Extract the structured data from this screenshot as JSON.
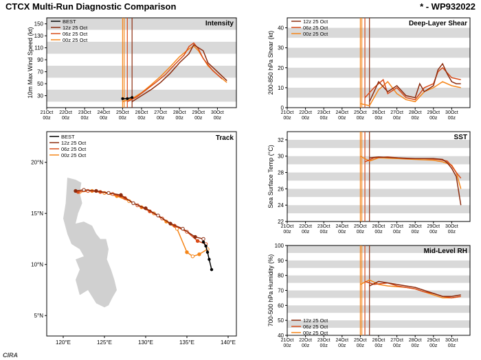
{
  "header": {
    "title": "CTCX Multi-Run Diagnostic Comparison",
    "storm_id": "* - WP932022",
    "logo": "CIRA"
  },
  "runs": [
    {
      "label": "12z 25 Oct",
      "color": "#8b2a0c"
    },
    {
      "label": "06z 25 Oct",
      "color": "#d94a17"
    },
    {
      "label": "00z 25 Oct",
      "color": "#f58518"
    }
  ],
  "best_label": "BEST",
  "best_color": "#000000",
  "grid_band_color": "#d9d9d9",
  "grid_bg_color": "#ffffff",
  "axis_color": "#000000",
  "fontsize_axis": 9,
  "fontsize_panel_title": 10,
  "time_axis": {
    "start": "21Oct 00z",
    "end": "31Oct 00z",
    "ticks": [
      "21Oct\n00z",
      "22Oct\n00z",
      "23Oct\n00z",
      "24Oct\n00z",
      "25Oct\n00z",
      "26Oct\n00z",
      "27Oct\n00z",
      "28Oct\n00z",
      "29Oct\n00z",
      "30Oct\n00z"
    ],
    "tick_positions": [
      21,
      22,
      23,
      24,
      25,
      26,
      27,
      28,
      29,
      30
    ],
    "xlim": [
      21,
      31
    ]
  },
  "intensity": {
    "title": "Intensity",
    "ylabel": "10m Max Wind Speed (kt)",
    "ylim": [
      10,
      160
    ],
    "ytick_step": 20,
    "band_levels": [
      [
        20,
        40
      ],
      [
        60,
        80
      ],
      [
        100,
        120
      ],
      [
        140,
        160
      ]
    ],
    "best": [
      [
        25.0,
        25
      ],
      [
        25.25,
        25
      ],
      [
        25.5,
        27
      ]
    ],
    "series": {
      "12z": [
        [
          25.5,
          20
        ],
        [
          26.0,
          30
        ],
        [
          26.5,
          40
        ],
        [
          27.0,
          52
        ],
        [
          27.5,
          67
        ],
        [
          28.0,
          85
        ],
        [
          28.5,
          100
        ],
        [
          28.75,
          115
        ],
        [
          29.0,
          110
        ],
        [
          29.25,
          105
        ],
        [
          29.5,
          85
        ],
        [
          30.0,
          70
        ],
        [
          30.5,
          55
        ]
      ],
      "06z": [
        [
          25.25,
          20
        ],
        [
          25.75,
          28
        ],
        [
          26.25,
          40
        ],
        [
          26.75,
          52
        ],
        [
          27.25,
          65
        ],
        [
          27.75,
          82
        ],
        [
          28.25,
          98
        ],
        [
          28.5,
          112
        ],
        [
          28.75,
          118
        ],
        [
          29.0,
          108
        ],
        [
          29.25,
          92
        ],
        [
          29.75,
          72
        ],
        [
          30.25,
          58
        ]
      ],
      "00z": [
        [
          25.0,
          20
        ],
        [
          25.5,
          25
        ],
        [
          26.0,
          35
        ],
        [
          26.5,
          48
        ],
        [
          27.0,
          62
        ],
        [
          27.5,
          78
        ],
        [
          28.0,
          95
        ],
        [
          28.5,
          108
        ],
        [
          28.75,
          113
        ],
        [
          29.0,
          105
        ],
        [
          29.5,
          80
        ],
        [
          30.0,
          65
        ],
        [
          30.5,
          52
        ]
      ]
    },
    "vlines": [
      25.0,
      25.08,
      25.25,
      25.5
    ]
  },
  "shear": {
    "title": "Deep-Layer Shear",
    "ylabel": "200-850 hPa Shear (kt)",
    "ylim": [
      0,
      45
    ],
    "yticks": [
      0,
      10,
      20,
      30,
      40
    ],
    "band_levels": [
      [
        5,
        10
      ],
      [
        15,
        20
      ],
      [
        25,
        30
      ],
      [
        35,
        40
      ]
    ],
    "series": {
      "12z": [
        [
          25.5,
          3
        ],
        [
          26.0,
          13
        ],
        [
          26.5,
          8
        ],
        [
          27.0,
          11
        ],
        [
          27.5,
          6
        ],
        [
          28.0,
          5
        ],
        [
          28.25,
          12
        ],
        [
          28.5,
          8
        ],
        [
          29.0,
          11
        ],
        [
          29.25,
          19
        ],
        [
          29.5,
          22
        ],
        [
          29.75,
          17
        ],
        [
          30.0,
          13
        ],
        [
          30.25,
          12
        ],
        [
          30.5,
          12
        ]
      ],
      "06z": [
        [
          25.25,
          5
        ],
        [
          25.75,
          10
        ],
        [
          26.25,
          14
        ],
        [
          26.5,
          7
        ],
        [
          27.0,
          10
        ],
        [
          27.5,
          5
        ],
        [
          28.0,
          4
        ],
        [
          28.5,
          10
        ],
        [
          29.0,
          12
        ],
        [
          29.25,
          18
        ],
        [
          29.5,
          20
        ],
        [
          30.0,
          15
        ],
        [
          30.5,
          14
        ]
      ],
      "00z": [
        [
          25.0,
          2
        ],
        [
          25.5,
          1
        ],
        [
          26.0,
          9
        ],
        [
          26.5,
          13
        ],
        [
          27.0,
          7
        ],
        [
          27.5,
          4
        ],
        [
          28.0,
          3
        ],
        [
          28.5,
          8
        ],
        [
          29.0,
          10
        ],
        [
          29.5,
          13
        ],
        [
          30.0,
          11
        ],
        [
          30.5,
          10
        ]
      ]
    },
    "vlines": [
      25.0,
      25.08,
      25.25,
      25.5
    ]
  },
  "sst": {
    "title": "SST",
    "ylabel": "Sea Surface Temp (°C)",
    "ylim": [
      22,
      33
    ],
    "yticks": [
      22,
      24,
      26,
      28,
      30,
      32
    ],
    "band_levels": [
      [
        23,
        24
      ],
      [
        25,
        26
      ],
      [
        27,
        28
      ],
      [
        29,
        30
      ],
      [
        31,
        32
      ]
    ],
    "series": {
      "12z": [
        [
          25.5,
          29.8
        ],
        [
          26.0,
          29.9
        ],
        [
          27.0,
          29.8
        ],
        [
          28.0,
          29.7
        ],
        [
          29.0,
          29.7
        ],
        [
          29.5,
          29.6
        ],
        [
          29.75,
          29.2
        ],
        [
          30.0,
          28.5
        ],
        [
          30.25,
          27.5
        ],
        [
          30.5,
          24.0
        ]
      ],
      "06z": [
        [
          25.25,
          29.3
        ],
        [
          25.75,
          29.8
        ],
        [
          26.5,
          29.9
        ],
        [
          27.5,
          29.7
        ],
        [
          28.5,
          29.7
        ],
        [
          29.25,
          29.6
        ],
        [
          29.75,
          29.4
        ],
        [
          30.0,
          28.8
        ],
        [
          30.25,
          28.0
        ],
        [
          30.5,
          27.3
        ]
      ],
      "00z": [
        [
          25.0,
          30.0
        ],
        [
          25.5,
          29.4
        ],
        [
          26.0,
          29.8
        ],
        [
          27.0,
          29.7
        ],
        [
          28.0,
          29.6
        ],
        [
          29.0,
          29.5
        ],
        [
          29.5,
          29.3
        ],
        [
          30.0,
          28.9
        ],
        [
          30.25,
          28.0
        ],
        [
          30.5,
          26.0
        ]
      ]
    },
    "vlines": [
      25.0,
      25.08,
      25.25,
      25.5
    ]
  },
  "rh": {
    "title": "Mid-Level RH",
    "ylabel": "700-500 hPa Humidity (%)",
    "ylim": [
      40,
      100
    ],
    "yticks": [
      40,
      50,
      60,
      70,
      80,
      90,
      100
    ],
    "band_levels": [
      [
        45,
        50
      ],
      [
        55,
        60
      ],
      [
        65,
        70
      ],
      [
        75,
        80
      ],
      [
        85,
        90
      ],
      [
        95,
        100
      ]
    ],
    "series": {
      "12z": [
        [
          25.5,
          73
        ],
        [
          26.0,
          76
        ],
        [
          26.5,
          75
        ],
        [
          27.0,
          74
        ],
        [
          27.5,
          73
        ],
        [
          28.0,
          72
        ],
        [
          28.5,
          70
        ],
        [
          29.0,
          68
        ],
        [
          29.5,
          66
        ],
        [
          30.0,
          66
        ],
        [
          30.5,
          67
        ]
      ],
      "06z": [
        [
          25.25,
          76
        ],
        [
          25.75,
          74
        ],
        [
          26.5,
          75
        ],
        [
          27.0,
          73
        ],
        [
          27.5,
          72
        ],
        [
          28.0,
          71
        ],
        [
          28.5,
          69
        ],
        [
          29.0,
          68
        ],
        [
          29.5,
          66
        ],
        [
          30.0,
          65
        ],
        [
          30.5,
          66
        ]
      ],
      "00z": [
        [
          25.0,
          74
        ],
        [
          25.5,
          77
        ],
        [
          26.0,
          74
        ],
        [
          26.5,
          73
        ],
        [
          27.5,
          72
        ],
        [
          28.0,
          71
        ],
        [
          28.5,
          69
        ],
        [
          29.0,
          67
        ],
        [
          29.5,
          65
        ],
        [
          30.0,
          65
        ],
        [
          30.5,
          66
        ]
      ]
    },
    "vlines": [
      25.0,
      25.08,
      25.25,
      25.5
    ]
  },
  "track": {
    "title": "Track",
    "xlim": [
      118,
      141
    ],
    "ylim": [
      3,
      23
    ],
    "xticks": [
      120,
      125,
      130,
      135,
      140
    ],
    "yticks": [
      5,
      10,
      15,
      20
    ],
    "xtick_labels": [
      "120°E",
      "125°E",
      "130°E",
      "135°E",
      "140°E"
    ],
    "ytick_labels": [
      "5°N",
      "10°N",
      "15°N",
      "20°N"
    ],
    "land_color": "#d0d0d0",
    "best": [
      [
        138.0,
        9.5
      ],
      [
        137.7,
        10.5
      ],
      [
        137.5,
        11.2
      ],
      [
        137.3,
        11.8
      ],
      [
        137.0,
        12.2
      ]
    ],
    "series": {
      "12z": [
        [
          137.0,
          12.5
        ],
        [
          136.0,
          12.7
        ],
        [
          134.5,
          13.5
        ],
        [
          133.0,
          14.0
        ],
        [
          131.5,
          14.8
        ],
        [
          130.0,
          15.5
        ],
        [
          128.5,
          16.0
        ],
        [
          127.0,
          16.8
        ],
        [
          125.5,
          17.0
        ],
        [
          124.0,
          17.2
        ],
        [
          122.5,
          17.3
        ],
        [
          121.5,
          17.2
        ]
      ],
      "06z": [
        [
          137.3,
          12.0
        ],
        [
          136.3,
          12.3
        ],
        [
          135.0,
          13.2
        ],
        [
          133.5,
          13.8
        ],
        [
          132.0,
          14.5
        ],
        [
          130.5,
          15.2
        ],
        [
          129.0,
          15.8
        ],
        [
          127.5,
          16.5
        ],
        [
          126.0,
          16.9
        ],
        [
          124.5,
          17.1
        ],
        [
          123.0,
          17.2
        ],
        [
          121.8,
          17.1
        ]
      ],
      "00z": [
        [
          137.5,
          11.5
        ],
        [
          136.5,
          11.0
        ],
        [
          135.7,
          10.8
        ],
        [
          135.0,
          11.2
        ],
        [
          133.8,
          13.5
        ],
        [
          132.5,
          14.2
        ],
        [
          131.0,
          15.0
        ],
        [
          129.5,
          15.6
        ],
        [
          128.0,
          16.2
        ],
        [
          126.5,
          16.7
        ],
        [
          125.0,
          17.0
        ],
        [
          123.5,
          17.2
        ],
        [
          122.0,
          17.1
        ]
      ]
    },
    "philippines_outline": [
      [
        120.5,
        18.5
      ],
      [
        121.5,
        18.3
      ],
      [
        122.2,
        18.0
      ],
      [
        122.0,
        17.0
      ],
      [
        122.3,
        16.0
      ],
      [
        121.8,
        15.0
      ],
      [
        121.5,
        14.0
      ],
      [
        122.5,
        14.2
      ],
      [
        123.5,
        13.8
      ],
      [
        124.0,
        13.0
      ],
      [
        124.5,
        12.5
      ],
      [
        125.2,
        12.5
      ],
      [
        125.5,
        11.5
      ],
      [
        125.3,
        10.5
      ],
      [
        125.8,
        9.5
      ],
      [
        126.2,
        8.5
      ],
      [
        126.5,
        7.5
      ],
      [
        126.0,
        6.8
      ],
      [
        125.5,
        6.0
      ],
      [
        125.0,
        5.8
      ],
      [
        124.0,
        6.2
      ],
      [
        123.0,
        7.5
      ],
      [
        122.0,
        7.0
      ],
      [
        121.5,
        8.5
      ],
      [
        122.0,
        9.5
      ],
      [
        121.5,
        10.5
      ],
      [
        122.5,
        10.8
      ],
      [
        122.0,
        11.5
      ],
      [
        121.0,
        12.0
      ],
      [
        120.5,
        13.0
      ],
      [
        120.0,
        14.5
      ],
      [
        120.3,
        16.0
      ],
      [
        120.5,
        18.5
      ]
    ]
  }
}
